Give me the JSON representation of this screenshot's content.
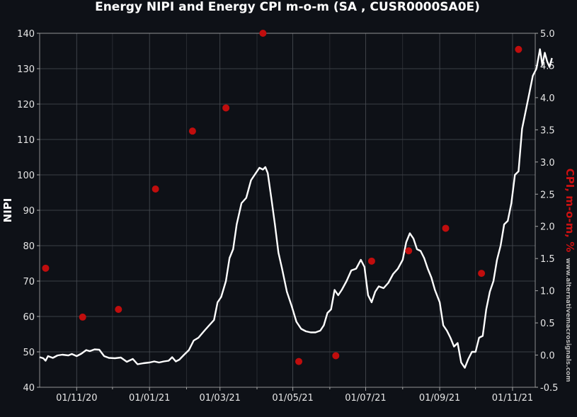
{
  "chart_data": {
    "type": "line",
    "title": "Energy NIPI and Energy CPI m-o-m (SA , CUSR0000SA0E)",
    "ylabel": "NIPI",
    "y2label": "CPI, m-o-m, %",
    "watermark": "www.alternativemacrosignals.com",
    "ylim": [
      40,
      140
    ],
    "y2lim": [
      -0.5,
      5.0
    ],
    "yticks": [
      "40",
      "50",
      "60",
      "70",
      "80",
      "90",
      "100",
      "110",
      "120",
      "130",
      "140"
    ],
    "y2ticks": [
      "-0.5",
      "0.0",
      "0.5",
      "1.0",
      "1.5",
      "2.0",
      "2.5",
      "3.0",
      "3.5",
      "4.0",
      "4.5",
      "5.0"
    ],
    "xrange": [
      "2020-10-01",
      "2021-11-20"
    ],
    "xticks": [
      {
        "date": "2020-11-01",
        "label": "01/11/20"
      },
      {
        "date": "2021-01-01",
        "label": "01/01/21"
      },
      {
        "date": "2021-03-01",
        "label": "01/03/21"
      },
      {
        "date": "2021-05-01",
        "label": "01/05/21"
      },
      {
        "date": "2021-07-01",
        "label": "01/07/21"
      },
      {
        "date": "2021-09-01",
        "label": "01/09/21"
      },
      {
        "date": "2021-11-01",
        "label": "01/11/21"
      }
    ],
    "xminor_ticks": [
      "2020-12-01",
      "2021-02-01",
      "2021-04-01",
      "2021-06-01",
      "2021-08-01",
      "2021-10-01"
    ],
    "grid": true,
    "series": [
      {
        "axis": "left",
        "color": "#ffffff",
        "points": [
          [
            "2020-10-01",
            48.5
          ],
          [
            "2020-10-04",
            48.2
          ],
          [
            "2020-10-06",
            47.5
          ],
          [
            "2020-10-08",
            48.8
          ],
          [
            "2020-10-12",
            48.3
          ],
          [
            "2020-10-16",
            49.0
          ],
          [
            "2020-10-20",
            49.2
          ],
          [
            "2020-10-25",
            49.0
          ],
          [
            "2020-10-28",
            49.4
          ],
          [
            "2020-11-01",
            48.8
          ],
          [
            "2020-11-05",
            49.5
          ],
          [
            "2020-11-09",
            50.5
          ],
          [
            "2020-11-12",
            50.2
          ],
          [
            "2020-11-16",
            50.7
          ],
          [
            "2020-11-20",
            50.6
          ],
          [
            "2020-11-24",
            48.8
          ],
          [
            "2020-11-28",
            48.3
          ],
          [
            "2020-12-03",
            48.2
          ],
          [
            "2020-12-08",
            48.4
          ],
          [
            "2020-12-13",
            47.2
          ],
          [
            "2020-12-18",
            48.0
          ],
          [
            "2020-12-22",
            46.5
          ],
          [
            "2020-12-27",
            46.8
          ],
          [
            "2021-01-01",
            47.0
          ],
          [
            "2021-01-05",
            47.3
          ],
          [
            "2021-01-09",
            47.0
          ],
          [
            "2021-01-13",
            47.3
          ],
          [
            "2021-01-17",
            47.5
          ],
          [
            "2021-01-20",
            48.5
          ],
          [
            "2021-01-23",
            47.3
          ],
          [
            "2021-01-26",
            47.8
          ],
          [
            "2021-01-30",
            49.2
          ],
          [
            "2021-02-03",
            50.5
          ],
          [
            "2021-02-07",
            53.2
          ],
          [
            "2021-02-11",
            54.0
          ],
          [
            "2021-02-16",
            56.0
          ],
          [
            "2021-02-20",
            57.5
          ],
          [
            "2021-02-24",
            59.0
          ],
          [
            "2021-02-27",
            64.0
          ],
          [
            "2021-03-02",
            65.5
          ],
          [
            "2021-03-06",
            70.0
          ],
          [
            "2021-03-09",
            76.5
          ],
          [
            "2021-03-12",
            79.0
          ],
          [
            "2021-03-15",
            86.0
          ],
          [
            "2021-03-19",
            92.0
          ],
          [
            "2021-03-23",
            93.5
          ],
          [
            "2021-03-27",
            98.5
          ],
          [
            "2021-03-31",
            100.5
          ],
          [
            "2021-04-03",
            102.0
          ],
          [
            "2021-04-06",
            101.5
          ],
          [
            "2021-04-08",
            102.2
          ],
          [
            "2021-04-10",
            100.5
          ],
          [
            "2021-04-13",
            93.5
          ],
          [
            "2021-04-16",
            86.0
          ],
          [
            "2021-04-19",
            78.0
          ],
          [
            "2021-04-22",
            73.5
          ],
          [
            "2021-04-26",
            67.0
          ],
          [
            "2021-04-30",
            63.0
          ],
          [
            "2021-05-04",
            58.5
          ],
          [
            "2021-05-08",
            56.5
          ],
          [
            "2021-05-12",
            55.8
          ],
          [
            "2021-05-16",
            55.5
          ],
          [
            "2021-05-20",
            55.5
          ],
          [
            "2021-05-24",
            56.0
          ],
          [
            "2021-05-27",
            57.5
          ],
          [
            "2021-05-30",
            61.0
          ],
          [
            "2021-06-02",
            62.0
          ],
          [
            "2021-06-05",
            67.5
          ],
          [
            "2021-06-08",
            66.0
          ],
          [
            "2021-06-11",
            67.5
          ],
          [
            "2021-06-15",
            70.0
          ],
          [
            "2021-06-19",
            73.0
          ],
          [
            "2021-06-23",
            73.5
          ],
          [
            "2021-06-27",
            76.0
          ],
          [
            "2021-06-30",
            74.0
          ],
          [
            "2021-07-03",
            66.0
          ],
          [
            "2021-07-06",
            64.0
          ],
          [
            "2021-07-09",
            67.0
          ],
          [
            "2021-07-12",
            68.5
          ],
          [
            "2021-07-16",
            68.0
          ],
          [
            "2021-07-20",
            69.5
          ],
          [
            "2021-07-24",
            72.0
          ],
          [
            "2021-07-28",
            73.5
          ],
          [
            "2021-08-01",
            76.0
          ],
          [
            "2021-08-04",
            81.0
          ],
          [
            "2021-08-07",
            83.5
          ],
          [
            "2021-08-10",
            82.0
          ],
          [
            "2021-08-13",
            79.0
          ],
          [
            "2021-08-16",
            78.5
          ],
          [
            "2021-08-19",
            76.5
          ],
          [
            "2021-08-22",
            73.5
          ],
          [
            "2021-08-25",
            71.0
          ],
          [
            "2021-08-28",
            67.5
          ],
          [
            "2021-09-01",
            64.0
          ],
          [
            "2021-09-04",
            57.5
          ],
          [
            "2021-09-07",
            56.0
          ],
          [
            "2021-09-10",
            54.0
          ],
          [
            "2021-09-13",
            51.5
          ],
          [
            "2021-09-16",
            52.5
          ],
          [
            "2021-09-19",
            47.0
          ],
          [
            "2021-09-22",
            45.5
          ],
          [
            "2021-09-25",
            48.0
          ],
          [
            "2021-09-28",
            50.0
          ],
          [
            "2021-10-01",
            50.0
          ],
          [
            "2021-10-04",
            54.0
          ],
          [
            "2021-10-07",
            54.5
          ],
          [
            "2021-10-10",
            62.0
          ],
          [
            "2021-10-13",
            67.0
          ],
          [
            "2021-10-16",
            70.0
          ],
          [
            "2021-10-19",
            76.0
          ],
          [
            "2021-10-22",
            80.0
          ],
          [
            "2021-10-25",
            86.0
          ],
          [
            "2021-10-28",
            87.0
          ],
          [
            "2021-10-31",
            92.0
          ],
          [
            "2021-11-03",
            100.0
          ],
          [
            "2021-11-06",
            101.0
          ],
          [
            "2021-11-09",
            113.0
          ],
          [
            "2021-11-12",
            118.0
          ],
          [
            "2021-11-15",
            123.0
          ],
          [
            "2021-11-18",
            128.0
          ],
          [
            "2021-11-21",
            130.0
          ],
          [
            "2021-11-24",
            135.5
          ],
          [
            "2021-11-26",
            131.0
          ],
          [
            "2021-11-28",
            134.5
          ],
          [
            "2021-11-30",
            132.0
          ],
          [
            "2021-12-02",
            130.5
          ],
          [
            "2021-12-04",
            133.0
          ]
        ]
      },
      {
        "axis": "right",
        "color": "#c00d0d",
        "markers": true,
        "points": [
          [
            "2020-10-06",
            1.35
          ],
          [
            "2020-11-06",
            0.59
          ],
          [
            "2020-12-06",
            0.71
          ],
          [
            "2021-01-06",
            2.58
          ],
          [
            "2021-02-06",
            3.48
          ],
          [
            "2021-03-06",
            3.84
          ],
          [
            "2021-04-06",
            5.0
          ],
          [
            "2021-05-06",
            -0.1
          ],
          [
            "2021-06-06",
            -0.01
          ],
          [
            "2021-07-06",
            1.46
          ],
          [
            "2021-08-06",
            1.62
          ],
          [
            "2021-09-06",
            1.97
          ],
          [
            "2021-10-06",
            1.27
          ],
          [
            "2021-11-06",
            4.75
          ]
        ]
      }
    ]
  }
}
